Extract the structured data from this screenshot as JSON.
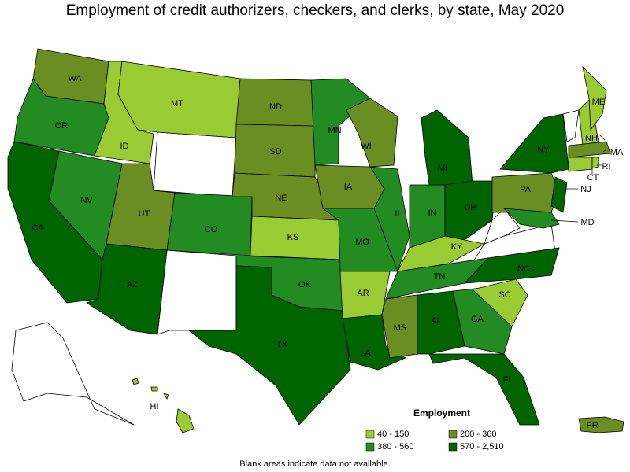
{
  "title": "Employment of credit authorizers, checkers, and clerks, by state, May 2020",
  "legend": {
    "title": "Employment",
    "items": [
      {
        "label": "40 - 150",
        "color": "#99cc33"
      },
      {
        "label": "200 - 360",
        "color": "#6b8e23"
      },
      {
        "label": "380 - 560",
        "color": "#228b22"
      },
      {
        "label": "570 - 2,510",
        "color": "#006400"
      }
    ]
  },
  "footnote": "Blank areas indicate data not available.",
  "states": [
    {
      "label": "WA",
      "color": "#6b8e23"
    },
    {
      "label": "OR",
      "color": "#228b22"
    },
    {
      "label": "CA",
      "color": "#006400"
    },
    {
      "label": "NV",
      "color": "#228b22"
    },
    {
      "label": "ID",
      "color": "#99cc33"
    },
    {
      "label": "MT",
      "color": "#99cc33"
    },
    {
      "label": "UT",
      "color": "#6b8e23"
    },
    {
      "label": "CO",
      "color": "#228b22"
    },
    {
      "label": "AZ",
      "color": "#006400"
    },
    {
      "label": "ND",
      "color": "#6b8e23"
    },
    {
      "label": "SD",
      "color": "#6b8e23"
    },
    {
      "label": "NE",
      "color": "#6b8e23"
    },
    {
      "label": "KS",
      "color": "#99cc33"
    },
    {
      "label": "OK",
      "color": "#228b22"
    },
    {
      "label": "TX",
      "color": "#006400"
    },
    {
      "label": "MN",
      "color": "#228b22"
    },
    {
      "label": "IA",
      "color": "#6b8e23"
    },
    {
      "label": "MO",
      "color": "#228b22"
    },
    {
      "label": "AR",
      "color": "#99cc33"
    },
    {
      "label": "LA",
      "color": "#006400"
    },
    {
      "label": "WI",
      "color": "#6b8e23"
    },
    {
      "label": "IL",
      "color": "#228b22"
    },
    {
      "label": "MI",
      "color": "#006400"
    },
    {
      "label": "IN",
      "color": "#228b22"
    },
    {
      "label": "OH",
      "color": "#006400"
    },
    {
      "label": "KY",
      "color": "#99cc33"
    },
    {
      "label": "TN",
      "color": "#228b22"
    },
    {
      "label": "MS",
      "color": "#6b8e23"
    },
    {
      "label": "AL",
      "color": "#006400"
    },
    {
      "label": "GA",
      "color": "#228b22"
    },
    {
      "label": "FL",
      "color": "#006400"
    },
    {
      "label": "SC",
      "color": "#99cc33"
    },
    {
      "label": "NC",
      "color": "#006400"
    },
    {
      "label": "PA",
      "color": "#6b8e23"
    },
    {
      "label": "NY",
      "color": "#006400"
    },
    {
      "label": "NJ",
      "color": "#006400"
    },
    {
      "label": "MD",
      "color": "#228b22"
    },
    {
      "label": "NH",
      "color": "#99cc33"
    },
    {
      "label": "ME",
      "color": "#99cc33"
    },
    {
      "label": "MA",
      "color": "#6b8e23"
    },
    {
      "label": "CT",
      "color": "#99cc33"
    },
    {
      "label": "RI",
      "color": "#99cc33"
    },
    {
      "label": "HI",
      "color": "#99cc33"
    },
    {
      "label": "PR",
      "color": "#6b8e23"
    }
  ]
}
